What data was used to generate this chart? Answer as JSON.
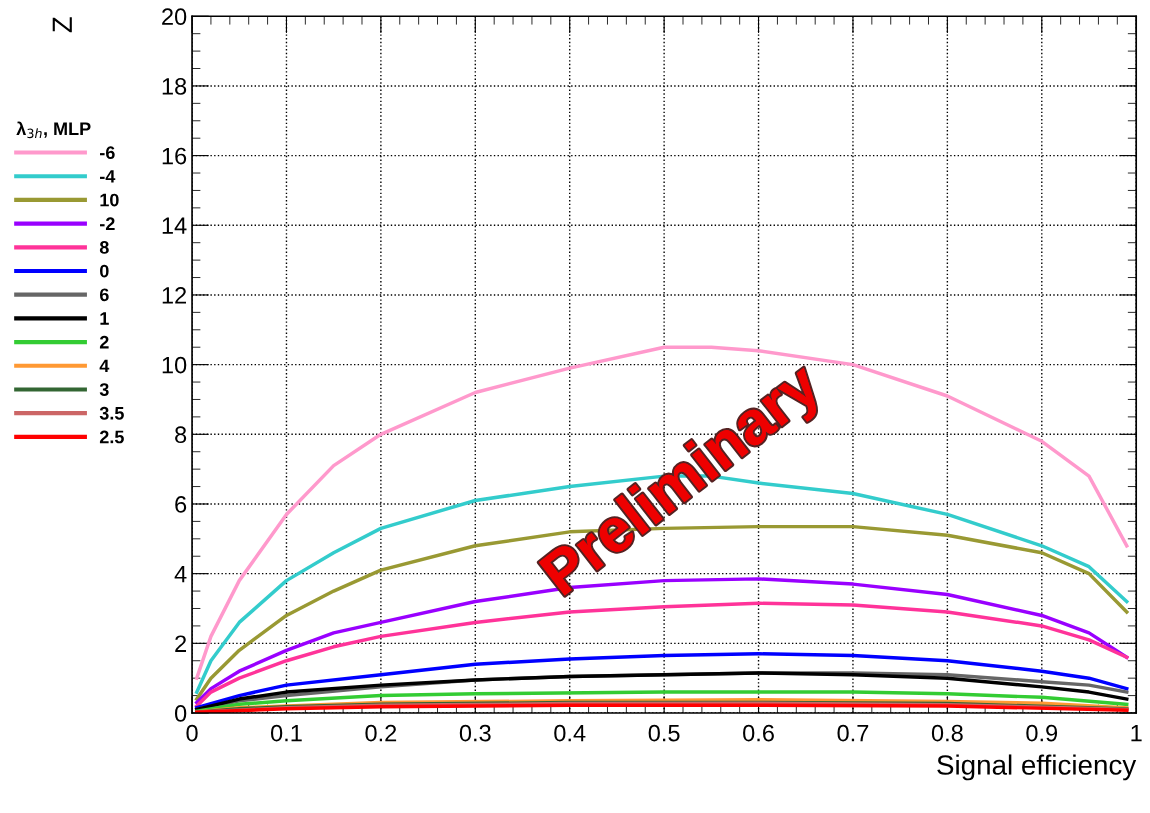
{
  "chart_data": {
    "type": "line",
    "xlabel": "Signal efficiency",
    "ylabel": "Z",
    "legend_title": "λ$_{3h}$, MLP",
    "legend": "left",
    "grid": true,
    "line_style": "solid",
    "marker": "none",
    "xlim": [
      0,
      1
    ],
    "xticks": [
      0,
      0.1,
      0.2,
      0.3,
      0.4,
      0.5,
      0.6,
      0.7,
      0.8,
      0.9,
      1
    ],
    "ylim": [
      0,
      20
    ],
    "yticks": [
      0,
      2,
      4,
      6,
      8,
      10,
      12,
      14,
      16,
      18,
      20
    ],
    "annotations": [
      "Preliminary"
    ],
    "series": [
      {
        "name": "-6",
        "color": "#ff99cc",
        "x": [
          0.005,
          0.02,
          0.05,
          0.1,
          0.15,
          0.2,
          0.3,
          0.4,
          0.5,
          0.55,
          0.6,
          0.7,
          0.8,
          0.9,
          0.95,
          0.99
        ],
        "values": [
          1.0,
          2.2,
          3.8,
          5.7,
          7.1,
          8.0,
          9.2,
          9.9,
          10.5,
          10.5,
          10.4,
          10.0,
          9.1,
          7.8,
          6.8,
          4.8
        ]
      },
      {
        "name": "-4",
        "color": "#33cccc",
        "x": [
          0.005,
          0.02,
          0.05,
          0.1,
          0.15,
          0.2,
          0.3,
          0.4,
          0.5,
          0.55,
          0.6,
          0.7,
          0.8,
          0.9,
          0.95,
          0.99
        ],
        "values": [
          0.6,
          1.5,
          2.6,
          3.8,
          4.6,
          5.3,
          6.1,
          6.5,
          6.8,
          6.8,
          6.6,
          6.3,
          5.7,
          4.8,
          4.2,
          3.2
        ]
      },
      {
        "name": "10",
        "color": "#999933",
        "x": [
          0.005,
          0.02,
          0.05,
          0.1,
          0.15,
          0.2,
          0.3,
          0.4,
          0.5,
          0.6,
          0.7,
          0.8,
          0.9,
          0.95,
          0.99
        ],
        "values": [
          0.4,
          1.0,
          1.8,
          2.8,
          3.5,
          4.1,
          4.8,
          5.2,
          5.3,
          5.35,
          5.35,
          5.1,
          4.6,
          4.0,
          2.9
        ]
      },
      {
        "name": "-2",
        "color": "#9900ff",
        "x": [
          0.005,
          0.02,
          0.05,
          0.1,
          0.15,
          0.2,
          0.3,
          0.4,
          0.5,
          0.6,
          0.7,
          0.8,
          0.9,
          0.95,
          0.99
        ],
        "values": [
          0.3,
          0.7,
          1.2,
          1.8,
          2.3,
          2.6,
          3.2,
          3.6,
          3.8,
          3.85,
          3.7,
          3.4,
          2.8,
          2.3,
          1.6
        ]
      },
      {
        "name": "8",
        "color": "#ff3399",
        "x": [
          0.005,
          0.02,
          0.05,
          0.1,
          0.15,
          0.2,
          0.3,
          0.4,
          0.5,
          0.6,
          0.7,
          0.8,
          0.9,
          0.95,
          0.99
        ],
        "values": [
          0.2,
          0.6,
          1.0,
          1.5,
          1.9,
          2.2,
          2.6,
          2.9,
          3.05,
          3.15,
          3.1,
          2.9,
          2.5,
          2.1,
          1.6
        ]
      },
      {
        "name": "0",
        "color": "#0000ff",
        "x": [
          0.005,
          0.05,
          0.1,
          0.2,
          0.3,
          0.4,
          0.5,
          0.6,
          0.7,
          0.8,
          0.9,
          0.95,
          0.99
        ],
        "values": [
          0.15,
          0.5,
          0.8,
          1.1,
          1.4,
          1.55,
          1.65,
          1.7,
          1.65,
          1.5,
          1.2,
          1.0,
          0.7
        ]
      },
      {
        "name": "6",
        "color": "#666666",
        "x": [
          0.005,
          0.05,
          0.1,
          0.2,
          0.3,
          0.4,
          0.5,
          0.6,
          0.7,
          0.8,
          0.9,
          0.95,
          0.99
        ],
        "values": [
          0.1,
          0.35,
          0.5,
          0.75,
          0.95,
          1.05,
          1.1,
          1.15,
          1.15,
          1.1,
          0.9,
          0.8,
          0.6
        ]
      },
      {
        "name": "1",
        "color": "#000000",
        "x": [
          0.005,
          0.05,
          0.1,
          0.2,
          0.3,
          0.4,
          0.5,
          0.6,
          0.7,
          0.8,
          0.9,
          0.95,
          0.99
        ],
        "values": [
          0.1,
          0.4,
          0.6,
          0.8,
          0.95,
          1.05,
          1.1,
          1.15,
          1.1,
          1.0,
          0.75,
          0.6,
          0.4
        ]
      },
      {
        "name": "2",
        "color": "#33cc33",
        "x": [
          0.005,
          0.05,
          0.1,
          0.2,
          0.3,
          0.5,
          0.7,
          0.8,
          0.9,
          0.99
        ],
        "values": [
          0.05,
          0.25,
          0.35,
          0.5,
          0.55,
          0.6,
          0.6,
          0.55,
          0.45,
          0.25
        ]
      },
      {
        "name": "4",
        "color": "#ff9933",
        "x": [
          0.005,
          0.05,
          0.1,
          0.2,
          0.4,
          0.6,
          0.8,
          0.9,
          0.99
        ],
        "values": [
          0.03,
          0.15,
          0.2,
          0.3,
          0.35,
          0.38,
          0.33,
          0.28,
          0.15
        ]
      },
      {
        "name": "3",
        "color": "#336633",
        "x": [
          0.005,
          0.05,
          0.1,
          0.2,
          0.4,
          0.6,
          0.8,
          0.99
        ],
        "values": [
          0.02,
          0.12,
          0.18,
          0.25,
          0.3,
          0.3,
          0.27,
          0.12
        ]
      },
      {
        "name": "3.5",
        "color": "#cc6666",
        "x": [
          0.005,
          0.1,
          0.2,
          0.4,
          0.6,
          0.8,
          0.99
        ],
        "values": [
          0.02,
          0.15,
          0.22,
          0.27,
          0.28,
          0.24,
          0.1
        ]
      },
      {
        "name": "2.5",
        "color": "#ff0000",
        "x": [
          0.005,
          0.1,
          0.2,
          0.4,
          0.6,
          0.8,
          0.99
        ],
        "values": [
          0.02,
          0.12,
          0.18,
          0.22,
          0.22,
          0.2,
          0.08
        ]
      }
    ]
  }
}
